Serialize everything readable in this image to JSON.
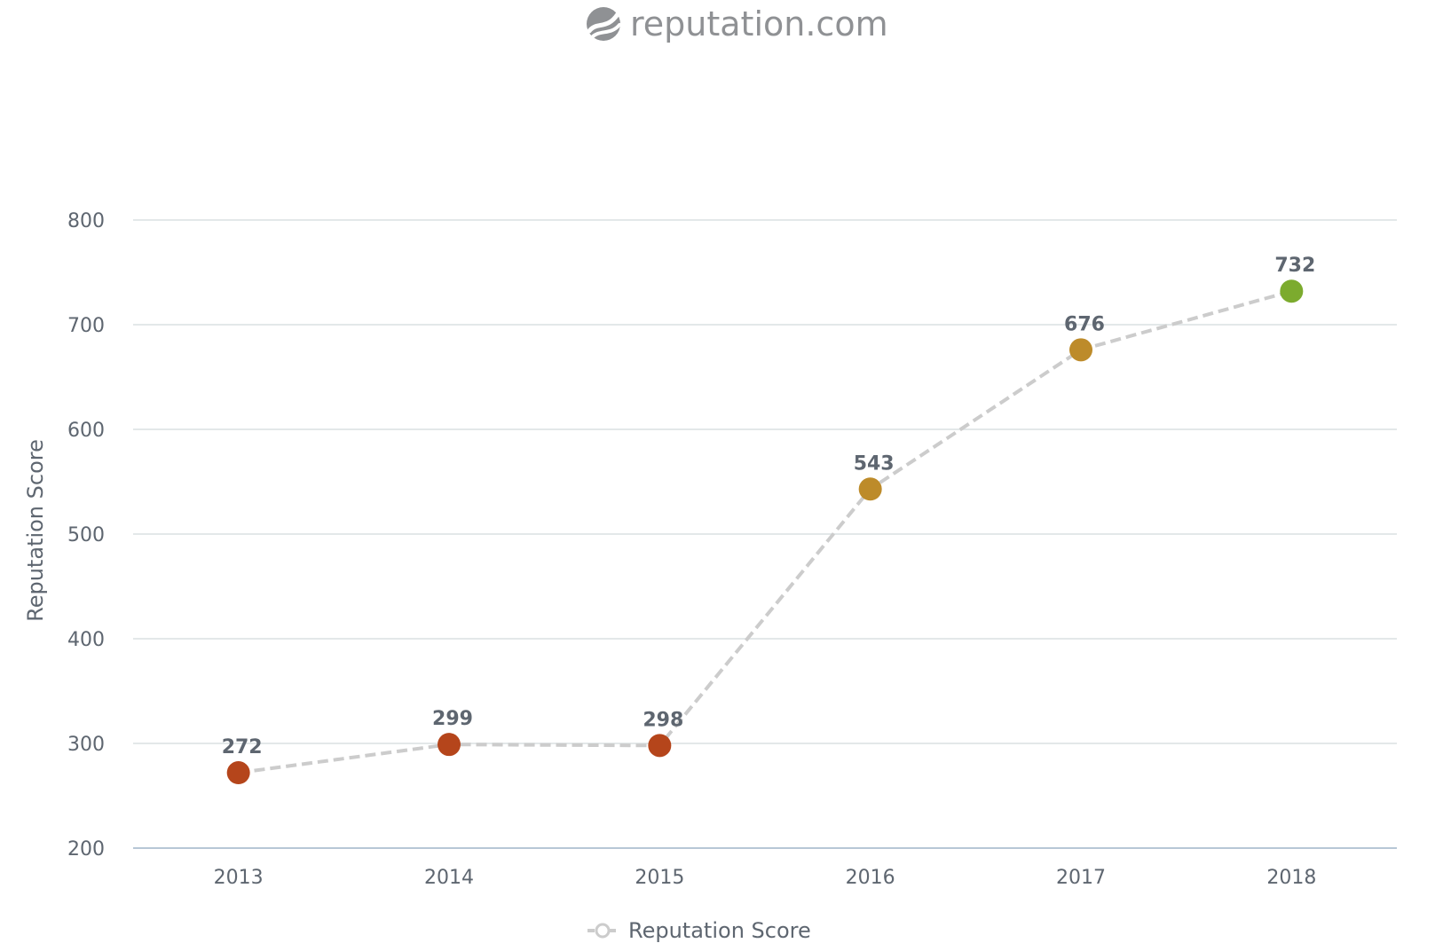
{
  "brand": {
    "name": "reputation.com",
    "icon": "reputation-logo-icon"
  },
  "colors": {
    "line": "#cccccc",
    "grid": "#e3e8e9",
    "axis_line": "#b7c7d6",
    "low": "#b5451b",
    "mid": "#bd8b2a",
    "high": "#7cab2e"
  },
  "chart_data": {
    "type": "line",
    "categories": [
      "2013",
      "2014",
      "2015",
      "2016",
      "2017",
      "2018"
    ],
    "series": [
      {
        "name": "Reputation Score",
        "values": [
          272,
          299,
          298,
          543,
          676,
          732
        ],
        "point_colors": [
          "#b5451b",
          "#b5451b",
          "#b5451b",
          "#bd8b2a",
          "#bd8b2a",
          "#7cab2e"
        ]
      }
    ],
    "data_labels": [
      "272",
      "299",
      "298",
      "543",
      "676",
      "732"
    ],
    "ylabel": "Reputation Score",
    "xlabel": "",
    "ylim": [
      200,
      800
    ],
    "yticks": [
      "200",
      "300",
      "400",
      "500",
      "600",
      "700",
      "800"
    ],
    "grid": true,
    "line_style": "dashed",
    "legend": {
      "position": "bottom-center",
      "entries": [
        "Reputation Score"
      ]
    }
  }
}
